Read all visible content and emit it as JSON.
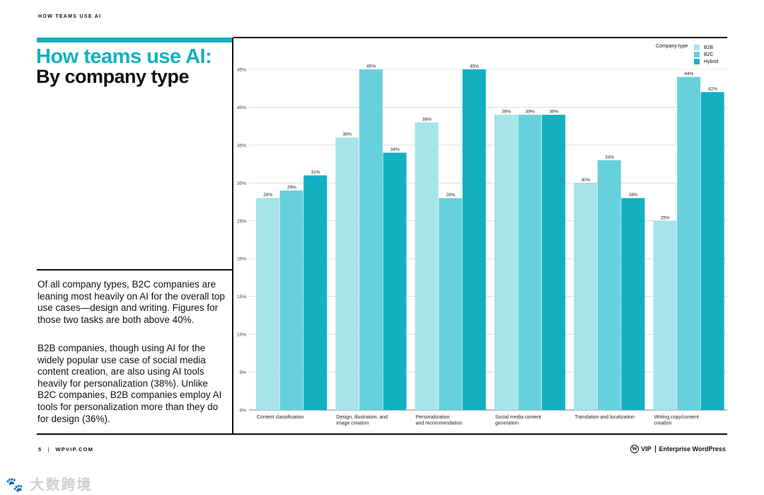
{
  "header": {
    "eyebrow": "HOW TEAMS USE AI"
  },
  "title": {
    "line1": "How teams use AI:",
    "line2": "By company type"
  },
  "body": {
    "p1": "Of all company types, B2C companies are leaning most heavily on AI for the overall top use cases—design and writing. Figures for those two tasks are both above 40%.",
    "p2": "B2B companies, though using AI for the widely popular use case of social media content creation, are also using AI tools heavily for personalization (38%). Unlike B2C companies, B2B companies employ AI tools for personalization more than they do for design (36%)."
  },
  "footer": {
    "page": "5",
    "site": "WPVIP.COM",
    "brand_vip": "VIP",
    "brand_name": "Enterprise WordPress",
    "wp_glyph": "W"
  },
  "watermark": "🐾 大数跨境",
  "colors": {
    "accent": "#13b0c2",
    "b2b": "#a6e3ea",
    "b2c": "#66d1dc",
    "hybrid": "#13b0c2"
  },
  "legend": {
    "title": "Company type"
  },
  "chart_data": {
    "type": "bar",
    "title": "How teams use AI: By company type",
    "ylim": [
      0,
      45
    ],
    "yticks": [
      "0%",
      "5%",
      "10%",
      "15%",
      "20%",
      "25%",
      "30%",
      "35%",
      "40%",
      "45%"
    ],
    "grid": true,
    "legend_position": "top-right",
    "categories": [
      [
        "Content classification"
      ],
      [
        "Design, illustration, and",
        "image creation"
      ],
      [
        "Personalization",
        "and recommendation"
      ],
      [
        "Social media content",
        "generation"
      ],
      [
        "Translation and localization"
      ],
      [
        "Writing copy/content",
        "creation"
      ]
    ],
    "series": [
      {
        "name": "B2B",
        "values": [
          28,
          36,
          38,
          39,
          30,
          25
        ]
      },
      {
        "name": "B2C",
        "values": [
          29,
          45,
          28,
          39,
          33,
          44
        ]
      },
      {
        "name": "Hybrid",
        "values": [
          31,
          34,
          45,
          39,
          28,
          42
        ]
      }
    ]
  }
}
